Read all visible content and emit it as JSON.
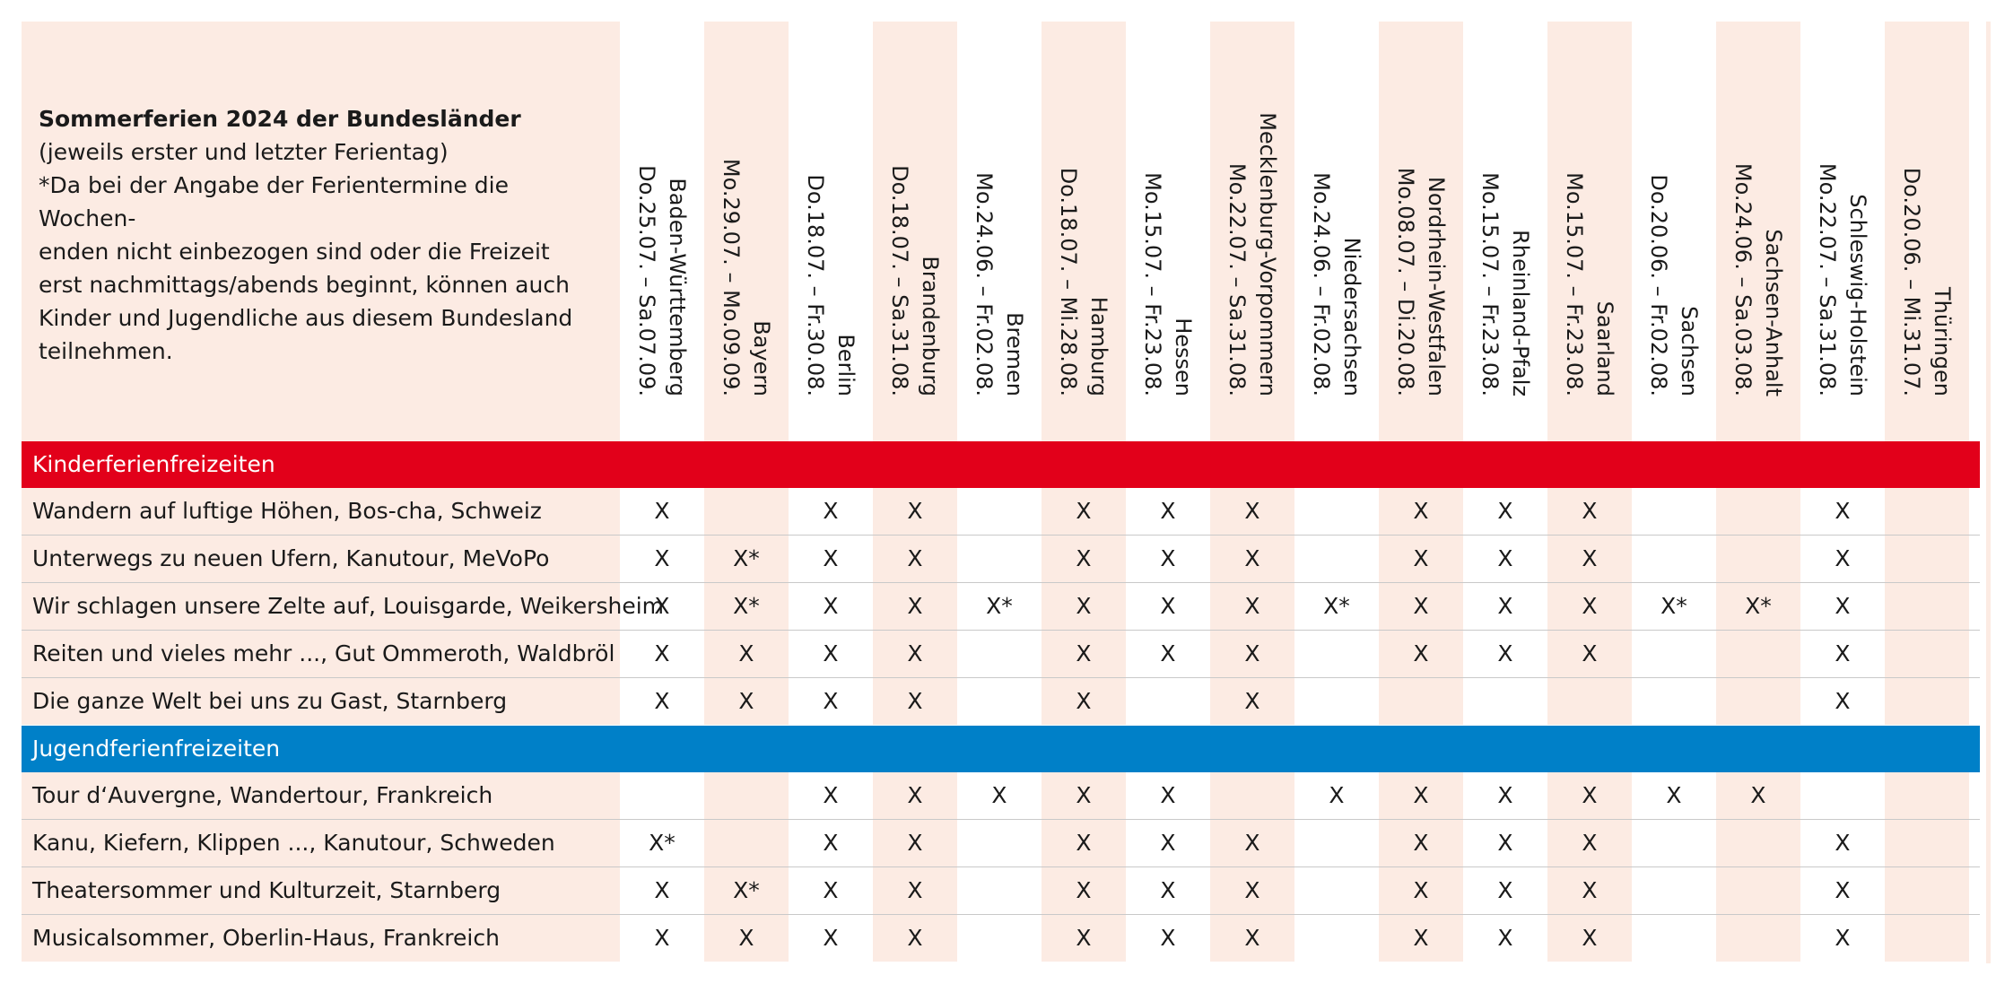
{
  "header": {
    "title": "Sommerferien 2024 der Bundesländer",
    "subtitle": "(jeweils erster und letzter Ferientag)",
    "note_lines": [
      "*Da bei der Angabe der Ferientermine die Wochen-",
      "enden nicht einbezogen sind oder die Freizeit",
      "erst nachmittags/abends beginnt, können auch",
      "Kinder und Jugendliche aus diesem Bundesland",
      "teilnehmen."
    ]
  },
  "states": [
    {
      "name": "Baden-Württemberg",
      "dates": "Do.25.07. – Sa.07.09."
    },
    {
      "name": "Bayern",
      "dates": "Mo.29.07. – Mo.09.09."
    },
    {
      "name": "Berlin",
      "dates": "Do.18.07. – Fr.30.08."
    },
    {
      "name": "Brandenburg",
      "dates": "Do.18.07. – Sa.31.08."
    },
    {
      "name": "Bremen",
      "dates": "Mo.24.06. – Fr.02.08."
    },
    {
      "name": "Hamburg",
      "dates": "Do.18.07. – Mi.28.08."
    },
    {
      "name": "Hessen",
      "dates": "Mo.15.07. – Fr.23.08."
    },
    {
      "name": "Mecklenburg-Vorpommern",
      "dates": "Mo.22.07. – Sa.31.08."
    },
    {
      "name": "Niedersachsen",
      "dates": "Mo.24.06. – Fr.02.08."
    },
    {
      "name": "Nordrhein-Westfalen",
      "dates": "Mo.08.07. – Di.20.08."
    },
    {
      "name": "Rheinland-Pfalz",
      "dates": "Mo.15.07. – Fr.23.08."
    },
    {
      "name": "Saarland",
      "dates": "Mo.15.07. – Fr.23.08."
    },
    {
      "name": "Sachsen",
      "dates": "Do.20.06. – Fr.02.08."
    },
    {
      "name": "Sachsen-Anhalt",
      "dates": "Mo.24.06. – Sa.03.08."
    },
    {
      "name": "Schleswig-Holstein",
      "dates": "Mo.22.07. – Sa.31.08."
    },
    {
      "name": "Thüringen",
      "dates": "Do.20.06. – Mi.31.07."
    }
  ],
  "sections": [
    {
      "title": "Kinderferienfreizeiten",
      "color": "#e2001a",
      "rows": [
        {
          "label": "Wandern auf luftige Höhen, Bos-cha, Schweiz",
          "cells": [
            "X",
            "",
            "X",
            "X",
            "",
            "X",
            "X",
            "X",
            "",
            "X",
            "X",
            "X",
            "",
            "",
            "X",
            ""
          ]
        },
        {
          "label": "Unterwegs zu neuen Ufern, Kanutour, MeVoPo",
          "cells": [
            "X",
            "X*",
            "X",
            "X",
            "",
            "X",
            "X",
            "X",
            "",
            "X",
            "X",
            "X",
            "",
            "",
            "X",
            ""
          ]
        },
        {
          "label": "Wir schlagen unsere Zelte auf, Louisgarde, Weikersheim",
          "cells": [
            "X",
            "X*",
            "X",
            "X",
            "X*",
            "X",
            "X",
            "X",
            "X*",
            "X",
            "X",
            "X",
            "X*",
            "X*",
            "X",
            ""
          ]
        },
        {
          "label": "Reiten und vieles mehr ..., Gut Ommeroth, Waldbröl",
          "cells": [
            "X",
            "X",
            "X",
            "X",
            "",
            "X",
            "X",
            "X",
            "",
            "X",
            "X",
            "X",
            "",
            "",
            "X",
            ""
          ]
        },
        {
          "label": "Die ganze Welt bei uns zu Gast, Starnberg",
          "cells": [
            "X",
            "X",
            "X",
            "X",
            "",
            "X",
            "",
            "X",
            "",
            "",
            "",
            "",
            "",
            "",
            "X",
            ""
          ]
        }
      ]
    },
    {
      "title": "Jugendferienfreizeiten",
      "color": "#0080c8",
      "rows": [
        {
          "label": "Tour d‘Auvergne, Wandertour, Frankreich",
          "cells": [
            "",
            "",
            "X",
            "X",
            "X",
            "X",
            "X",
            "",
            "X",
            "X",
            "X",
            "X",
            "X",
            "X",
            "",
            ""
          ]
        },
        {
          "label": "Kanu, Kiefern, Klippen ..., Kanutour, Schweden",
          "cells": [
            "X*",
            "",
            "X",
            "X",
            "",
            "X",
            "X",
            "X",
            "",
            "X",
            "X",
            "X",
            "",
            "",
            "X",
            ""
          ]
        },
        {
          "label": "Theatersommer und Kulturzeit, Starnberg",
          "cells": [
            "X",
            "X*",
            "X",
            "X",
            "",
            "X",
            "X",
            "X",
            "",
            "X",
            "X",
            "X",
            "",
            "",
            "X",
            ""
          ]
        },
        {
          "label": "Musicalsommer, Oberlin-Haus, Frankreich",
          "cells": [
            "X",
            "X",
            "X",
            "X",
            "",
            "X",
            "X",
            "X",
            "",
            "X",
            "X",
            "X",
            "",
            "",
            "X",
            ""
          ]
        }
      ]
    }
  ],
  "colors": {
    "shade": "#fcebe3",
    "red_bar": "#e2001a",
    "blue_bar": "#0080c8"
  }
}
